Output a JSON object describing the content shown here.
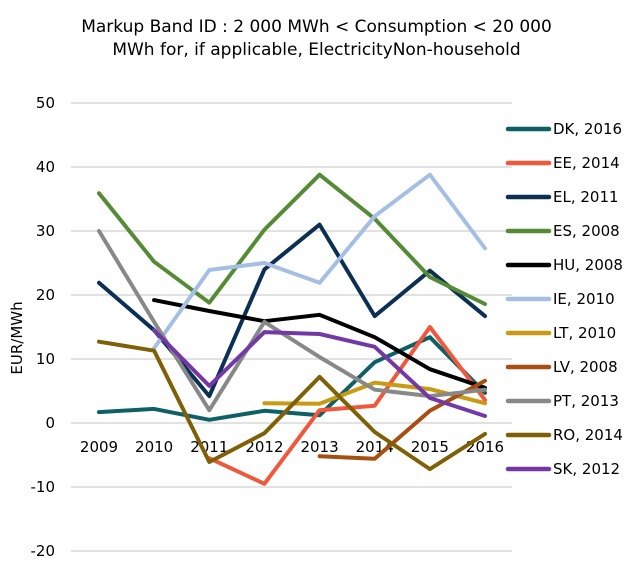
{
  "chart_data": {
    "type": "line",
    "title_lines": [
      "Markup Band ID : 2 000 MWh < Consumption < 20 000",
      "MWh for, if applicable, ElectricityNon-household"
    ],
    "xlabel": "",
    "ylabel": "EUR/MWh",
    "ylim": [
      -20,
      50
    ],
    "yticks": [
      50,
      40,
      30,
      20,
      10,
      0,
      -10,
      -20
    ],
    "ytick_labels": [
      "50",
      "40",
      "30",
      "20",
      "10",
      "0",
      "-10",
      "-20"
    ],
    "categories": [
      "2009",
      "2010",
      "2011",
      "2012",
      "2013",
      "2014",
      "2015",
      "2016"
    ],
    "grid": true,
    "legend_position": "right",
    "series": [
      {
        "name": "DK, 2016",
        "color": "#0e6067",
        "values": [
          1.7,
          2.2,
          0.5,
          1.9,
          1.2,
          9.5,
          13.4,
          4.7
        ]
      },
      {
        "name": "EE, 2014",
        "color": "#f0573b",
        "values": [
          null,
          null,
          -5.5,
          -9.5,
          2.0,
          2.7,
          15.0,
          3.6
        ]
      },
      {
        "name": "EL, 2011",
        "color": "#0c2f54",
        "values": [
          21.9,
          14.5,
          4.2,
          24.0,
          31.0,
          16.7,
          23.8,
          16.7
        ]
      },
      {
        "name": "ES, 2008",
        "color": "#568b36",
        "values": [
          35.9,
          25.2,
          18.8,
          30.2,
          38.8,
          31.9,
          22.8,
          18.6
        ]
      },
      {
        "name": "HU, 2008",
        "color": "#000000",
        "values": [
          null,
          19.2,
          17.5,
          15.9,
          16.9,
          13.4,
          8.4,
          5.5
        ]
      },
      {
        "name": "IE, 2010",
        "color": "#a4bfe3",
        "values": [
          null,
          11.7,
          23.9,
          25.0,
          21.9,
          32.3,
          38.8,
          27.3
        ]
      },
      {
        "name": "LT, 2010",
        "color": "#c99a12",
        "values": [
          null,
          null,
          null,
          3.1,
          3.0,
          6.3,
          5.3,
          3.1
        ]
      },
      {
        "name": "LV, 2008",
        "color": "#a84e12",
        "values": [
          null,
          null,
          null,
          null,
          -5.2,
          -5.6,
          1.9,
          6.6
        ]
      },
      {
        "name": "PT, 2013",
        "color": "#888888",
        "values": [
          30.0,
          15.8,
          2.0,
          15.8,
          10.3,
          5.2,
          4.2,
          5.2
        ]
      },
      {
        "name": "RO, 2014",
        "color": "#7f6006",
        "values": [
          12.7,
          11.3,
          -6.1,
          -1.6,
          7.2,
          -1.4,
          -7.2,
          -1.7
        ]
      },
      {
        "name": "SK, 2012",
        "color": "#7438a6",
        "values": [
          null,
          14.5,
          5.8,
          14.2,
          13.9,
          11.9,
          3.9,
          1.1
        ]
      }
    ]
  }
}
